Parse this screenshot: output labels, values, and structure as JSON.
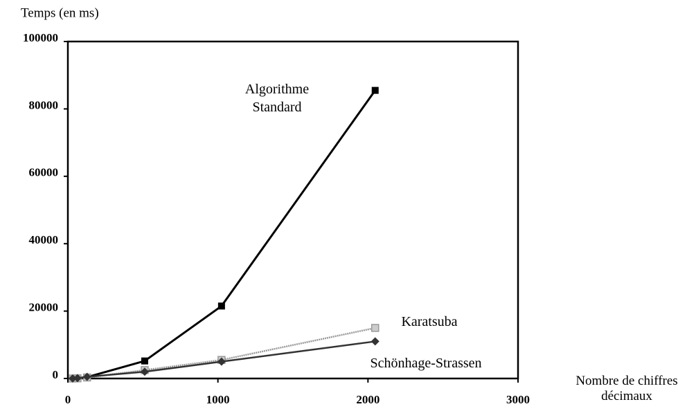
{
  "chart_data": {
    "type": "line",
    "y_label": "Temps (en ms)",
    "x_label": "Nombre de chiffres décimaux",
    "x": [
      32,
      64,
      128,
      512,
      1024,
      2048
    ],
    "series": [
      {
        "name": "Algorithme Standard",
        "color": "#000000",
        "values": [
          0,
          100,
          400,
          5200,
          21500,
          85500
        ]
      },
      {
        "name": "Karatsuba",
        "color": "#999999",
        "values": [
          0,
          50,
          300,
          2500,
          5500,
          15000
        ]
      },
      {
        "name": "Schönhage-Strassen",
        "color": "#333333",
        "values": [
          0,
          100,
          500,
          2000,
          5000,
          11000
        ]
      }
    ],
    "xlim": [
      0,
      3000
    ],
    "xticks": [
      0,
      1000,
      2000,
      3000
    ],
    "ylim": [
      0,
      100000
    ],
    "yticks": [
      0,
      20000,
      40000,
      60000,
      80000,
      100000
    ],
    "grid": false
  }
}
